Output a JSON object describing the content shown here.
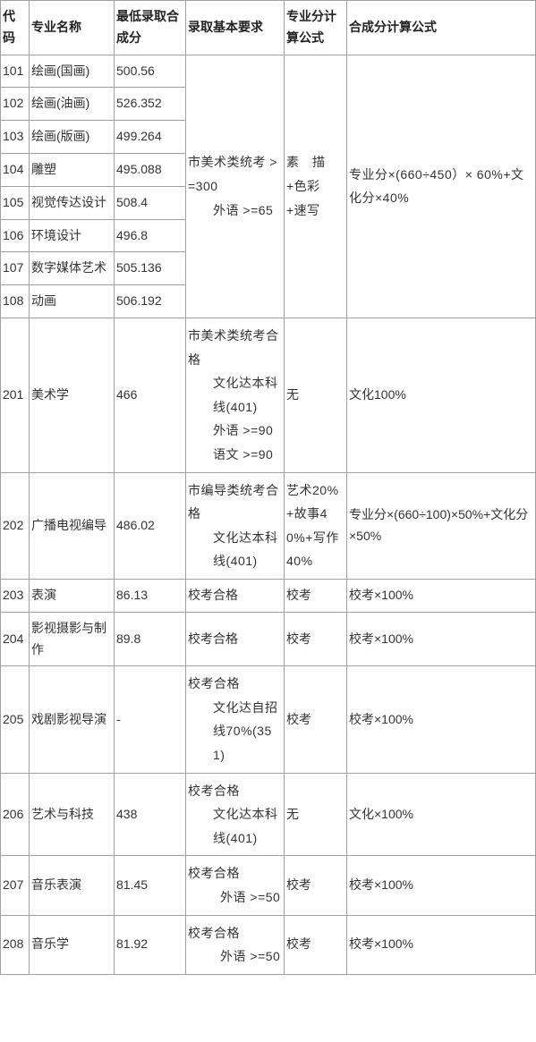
{
  "headers": {
    "code": "代码",
    "name": "专业名称",
    "score": "最低录取合成分",
    "req": "录取基本要求",
    "spec": "专业分计算公式",
    "formula": "合成分计算公式"
  },
  "group1": {
    "req_line1": "市美术类统考 >=300",
    "req_line2": "外语 >=65",
    "spec_line1": "素　描 +色彩 +速写",
    "formula_line1": "专业分×(660÷450）× 60%+文化分×40%",
    "rows": [
      {
        "code": "101",
        "name": "绘画(国画)",
        "score": "500.56"
      },
      {
        "code": "102",
        "name": "绘画(油画)",
        "score": "526.352"
      },
      {
        "code": "103",
        "name": "绘画(版画)",
        "score": "499.264"
      },
      {
        "code": "104",
        "name": "雕塑",
        "score": "495.088"
      },
      {
        "code": "105",
        "name": "视觉传达设计",
        "score": "508.4"
      },
      {
        "code": "106",
        "name": "环境设计",
        "score": "496.8"
      },
      {
        "code": "107",
        "name": "数字媒体艺术",
        "score": "505.136"
      },
      {
        "code": "108",
        "name": "动画",
        "score": "506.192"
      }
    ]
  },
  "row201": {
    "code": "201",
    "name": "美术学",
    "score": "466",
    "req_line1": "市美术类统考合格",
    "req_line2": "文化达本科线(401)",
    "req_line3": "外语 >=90",
    "req_line4": "语文 >=90",
    "spec": "无",
    "formula": "文化100%"
  },
  "row202": {
    "code": "202",
    "name": "广播电视编导",
    "score": "486.02",
    "req_line1": "市编导类统考合格",
    "req_line2": "文化达本科线(401)",
    "spec_line1": "艺术20%+故事40%+写作40%",
    "formula": "专业分×(660÷100)×50%+文化分×50%"
  },
  "row203": {
    "code": "203",
    "name": "表演",
    "score": "86.13",
    "req": "校考合格",
    "spec": "校考",
    "formula": "校考×100%"
  },
  "row204": {
    "code": "204",
    "name": "影视摄影与制作",
    "score": "89.8",
    "req": "校考合格",
    "spec": "校考",
    "formula": "校考×100%"
  },
  "row205": {
    "code": "205",
    "name": "戏剧影视导演",
    "score": "-",
    "req_line1": "校考合格",
    "req_line2": "文化达自招线70%(351)",
    "spec": "校考",
    "formula": "校考×100%"
  },
  "row206": {
    "code": "206",
    "name": "艺术与科技",
    "score": "438",
    "req_line1": "校考合格",
    "req_line2": "文化达本科线(401)",
    "spec": "无",
    "formula": "文化×100%"
  },
  "row207": {
    "code": "207",
    "name": "音乐表演",
    "score": "81.45",
    "req_line1": "校考合格",
    "req_line2": "外语 >=50",
    "spec": "校考",
    "formula": "校考×100%"
  },
  "row208": {
    "code": "208",
    "name": "音乐学",
    "score": "81.92",
    "req_line1": "校考合格",
    "req_line2": "外语 >=50",
    "spec": "校考",
    "formula": "校考×100%"
  }
}
